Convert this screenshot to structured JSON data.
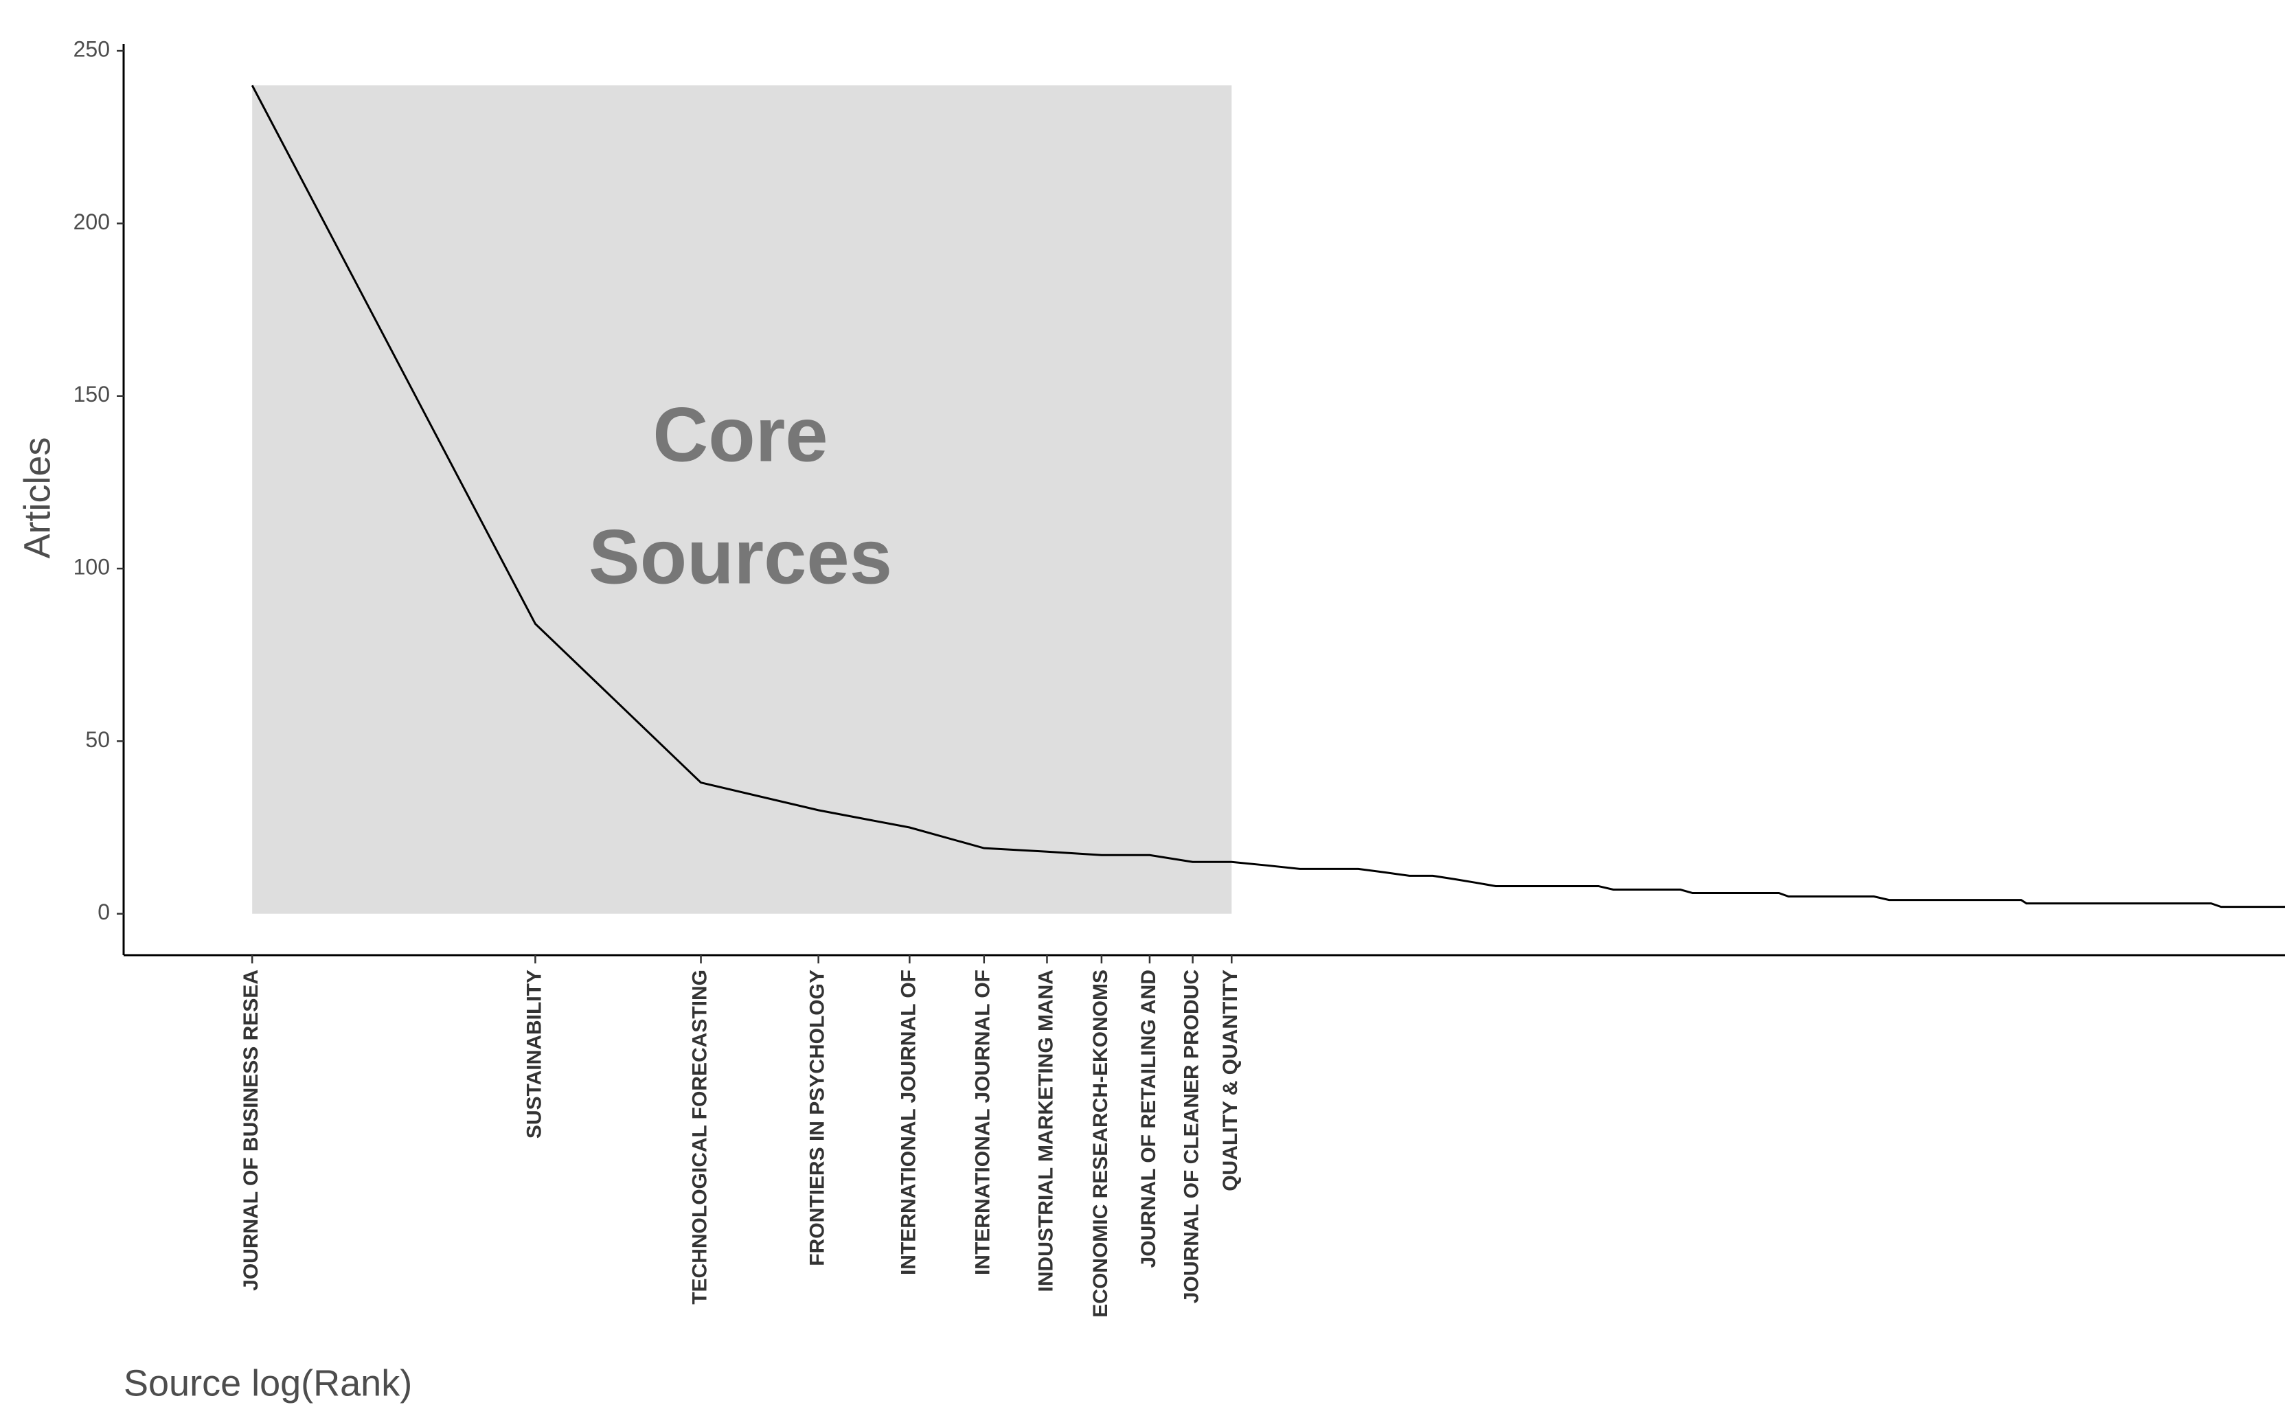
{
  "chart_data": {
    "type": "line",
    "x_label": "Source log(Rank)",
    "y_label": "Articles",
    "xscale": "log",
    "annotation": [
      "Core",
      "Sources"
    ],
    "core_zone": {
      "x": [
        1,
        11
      ],
      "y": [
        0,
        240
      ],
      "color": "#dedede"
    },
    "x": [
      1,
      2,
      3,
      4,
      5,
      6,
      7,
      8,
      9,
      10,
      11,
      12,
      13,
      15,
      16,
      17,
      18,
      19,
      20,
      21,
      27,
      28,
      33,
      34,
      42,
      43,
      53,
      55,
      76,
      77,
      121,
      124,
      145
    ],
    "series": [
      {
        "name": "Articles",
        "color": "#000000",
        "values": [
          240,
          84,
          38,
          30,
          25,
          19,
          18,
          17,
          17,
          15,
          15,
          14,
          13,
          13,
          12,
          11,
          11,
          10,
          9,
          8,
          8,
          7,
          7,
          6,
          6,
          5,
          5,
          4,
          4,
          3,
          3,
          2,
          2
        ]
      }
    ],
    "xlim": [
      0.73,
      145
    ],
    "ylim": [
      -12,
      252
    ],
    "yticks": [
      0,
      50,
      100,
      150,
      200,
      250
    ],
    "xticks": [
      {
        "value": 1,
        "label": "JOURNAL OF BUSINESS RESEA"
      },
      {
        "value": 2,
        "label": "SUSTAINABILITY"
      },
      {
        "value": 3,
        "label": "TECHNOLOGICAL FORECASTING"
      },
      {
        "value": 4,
        "label": "FRONTIERS IN PSYCHOLOGY"
      },
      {
        "value": 5,
        "label": "INTERNATIONAL JOURNAL OF"
      },
      {
        "value": 6,
        "label": "INTERNATIONAL JOURNAL OF"
      },
      {
        "value": 7,
        "label": "INDUSTRIAL MARKETING MANA"
      },
      {
        "value": 8,
        "label": "ECONOMIC RESEARCH-EKONOMS"
      },
      {
        "value": 9,
        "label": "JOURNAL OF RETAILING AND"
      },
      {
        "value": 10,
        "label": "JOURNAL OF CLEANER PRODUC"
      },
      {
        "value": 11,
        "label": "QUALITY & QUANTITY"
      }
    ],
    "grid": false
  }
}
